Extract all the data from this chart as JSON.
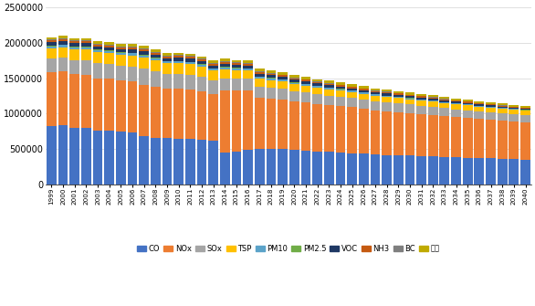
{
  "years": [
    1999,
    2000,
    2001,
    2002,
    2003,
    2004,
    2005,
    2006,
    2007,
    2008,
    2009,
    2010,
    2011,
    2012,
    2013,
    2014,
    2015,
    2016,
    2017,
    2018,
    2019,
    2020,
    2021,
    2022,
    2023,
    2024,
    2025,
    2026,
    2027,
    2028,
    2029,
    2030,
    2031,
    2032,
    2033,
    2034,
    2035,
    2036,
    2037,
    2038,
    2039,
    2040
  ],
  "year_labels": [
    "1999",
    "2000",
    "2001",
    "2002",
    "2003",
    "2004",
    "2005",
    "2006",
    "2007",
    "2008",
    "2009",
    "2010",
    "2011",
    "2012",
    "2013",
    "2014",
    "2015",
    "2016",
    "2017",
    "2018",
    "2019",
    "2020",
    "2021",
    "2022",
    "2023",
    "2024",
    "2025",
    "2026",
    "2027",
    "2028",
    "2029",
    "2030",
    "2031",
    "2032",
    "2033",
    "2034",
    "2035",
    "2036",
    "2037",
    "2038",
    "2039",
    "2040"
  ],
  "pollutants": [
    "CO",
    "NOx",
    "SOx",
    "TSP",
    "PM10",
    "PM2.5",
    "VOC",
    "NH3",
    "BC",
    "기타"
  ],
  "colors": [
    "#4472C4",
    "#ED7D31",
    "#A5A5A5",
    "#FFC000",
    "#5BA3C9",
    "#70AD47",
    "#1F3864",
    "#C55A11",
    "#7F7F7F",
    "#BFAA00"
  ],
  "data": {
    "CO": [
      820000,
      840000,
      800000,
      790000,
      760000,
      760000,
      750000,
      730000,
      680000,
      660000,
      650000,
      640000,
      640000,
      630000,
      610000,
      450000,
      460000,
      480000,
      500000,
      500000,
      500000,
      480000,
      470000,
      460000,
      455000,
      450000,
      440000,
      430000,
      420000,
      415000,
      410000,
      405000,
      400000,
      395000,
      385000,
      380000,
      375000,
      370000,
      365000,
      360000,
      355000,
      350000
    ],
    "NOx": [
      760000,
      760000,
      755000,
      750000,
      740000,
      730000,
      720000,
      720000,
      730000,
      720000,
      700000,
      710000,
      700000,
      680000,
      660000,
      870000,
      860000,
      840000,
      720000,
      710000,
      700000,
      690000,
      685000,
      675000,
      665000,
      655000,
      648000,
      638000,
      628000,
      620000,
      612000,
      604000,
      596000,
      588000,
      580000,
      572000,
      565000,
      558000,
      550000,
      543000,
      536000,
      530000
    ],
    "SOx": [
      195000,
      190000,
      200000,
      210000,
      210000,
      210000,
      210000,
      215000,
      220000,
      215000,
      210000,
      210000,
      210000,
      205000,
      195000,
      180000,
      175000,
      170000,
      160000,
      155000,
      150000,
      145000,
      142000,
      138000,
      135000,
      132000,
      129000,
      126000,
      123000,
      121000,
      119000,
      117000,
      115000,
      113000,
      111000,
      109000,
      107000,
      105000,
      103000,
      101000,
      99000,
      97000
    ],
    "TSP": [
      145000,
      150000,
      155000,
      160000,
      158000,
      155000,
      153000,
      158000,
      162000,
      158000,
      148000,
      152000,
      150000,
      148000,
      142000,
      125000,
      115000,
      115000,
      110000,
      106000,
      101000,
      97000,
      94000,
      91000,
      89000,
      87000,
      85000,
      83000,
      81000,
      79000,
      77000,
      75000,
      73000,
      71000,
      69000,
      67000,
      66000,
      64000,
      63000,
      62000,
      61000,
      60000
    ],
    "PM10": [
      28000,
      28000,
      28000,
      30000,
      28000,
      28000,
      28000,
      28000,
      30000,
      28000,
      26000,
      26000,
      26000,
      26000,
      25000,
      30000,
      30000,
      30000,
      28000,
      26000,
      25000,
      24000,
      23000,
      22000,
      21000,
      20000,
      19000,
      18000,
      17000,
      16000,
      16000,
      15000,
      15000,
      14000,
      14000,
      13000,
      13000,
      12000,
      12000,
      11000,
      11000,
      11000
    ],
    "PM2.5": [
      7000,
      7000,
      7000,
      7000,
      7000,
      6000,
      6000,
      7000,
      7000,
      6000,
      6000,
      6000,
      6000,
      6000,
      6000,
      7000,
      7000,
      7000,
      6000,
      6000,
      6000,
      5000,
      5000,
      5000,
      4000,
      4000,
      4000,
      4000,
      3000,
      3000,
      3000,
      3000,
      3000,
      3000,
      3000,
      3000,
      3000,
      2000,
      2000,
      2000,
      2000,
      2000
    ],
    "VOC": [
      50000,
      50000,
      48000,
      47000,
      46000,
      45000,
      44000,
      46000,
      48000,
      46000,
      44000,
      44000,
      43000,
      42000,
      41000,
      40000,
      39000,
      38000,
      38000,
      37000,
      36000,
      35000,
      34000,
      33000,
      32000,
      31000,
      30000,
      29000,
      28000,
      27000,
      26000,
      25000,
      24000,
      23000,
      22000,
      21000,
      20000,
      19000,
      18000,
      17000,
      16000,
      15000
    ],
    "NH3": [
      28000,
      28000,
      28000,
      28000,
      28000,
      27000,
      27000,
      28000,
      28000,
      27000,
      26000,
      26000,
      26000,
      25000,
      25000,
      25000,
      25000,
      25000,
      24000,
      24000,
      23000,
      23000,
      22000,
      22000,
      21000,
      21000,
      20000,
      20000,
      19000,
      19000,
      18000,
      18000,
      18000,
      17000,
      17000,
      17000,
      16000,
      16000,
      16000,
      15000,
      15000,
      15000
    ],
    "BC": [
      14000,
      14000,
      13000,
      13000,
      13000,
      12000,
      12000,
      12000,
      13000,
      12000,
      12000,
      12000,
      12000,
      11000,
      11000,
      11000,
      11000,
      11000,
      10000,
      10000,
      10000,
      9000,
      9000,
      9000,
      8000,
      8000,
      8000,
      7000,
      7000,
      7000,
      7000,
      6000,
      6000,
      6000,
      6000,
      5000,
      5000,
      5000,
      5000,
      4000,
      4000,
      4000
    ],
    "기타": [
      33000,
      33000,
      33000,
      34000,
      34000,
      34000,
      35000,
      36000,
      36000,
      36000,
      35000,
      35000,
      36000,
      36000,
      35000,
      36000,
      36000,
      35000,
      35000,
      34000,
      34000,
      33000,
      33000,
      32000,
      32000,
      31000,
      31000,
      30000,
      30000,
      29000,
      29000,
      28000,
      28000,
      27000,
      27000,
      26000,
      26000,
      25000,
      25000,
      24000,
      24000,
      23000
    ]
  },
  "ylim": [
    0,
    2500000
  ],
  "yticks": [
    0,
    500000,
    1000000,
    1500000,
    2000000,
    2500000
  ],
  "ytick_labels": [
    "0",
    "500000",
    "1000000",
    "1500000",
    "2000000",
    "2500000"
  ],
  "bgcolor": "#FFFFFF",
  "grid_color": "#D3D3D3"
}
